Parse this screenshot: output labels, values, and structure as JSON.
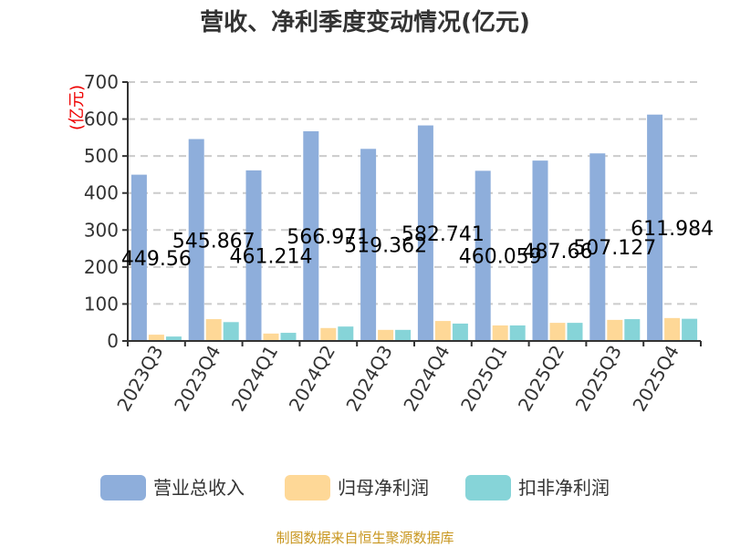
{
  "chart_data": {
    "type": "bar",
    "title": "营收、净利季度变动情况(亿元)",
    "ylabel": "(亿元)",
    "ylim": [
      0,
      700
    ],
    "yticks": [
      0,
      100,
      200,
      300,
      400,
      500,
      600,
      700
    ],
    "categories": [
      "2023Q3",
      "2023Q4",
      "2024Q1",
      "2024Q2",
      "2024Q3",
      "2024Q4",
      "2025Q1",
      "2025Q2",
      "2025Q3",
      "2025Q4"
    ],
    "series": [
      {
        "name": "营业总收入",
        "color": "#8eaedb",
        "values": [
          449.56,
          545.867,
          461.214,
          566.971,
          519.362,
          582.741,
          460.059,
          487.66,
          507.127,
          611.984
        ],
        "labels": [
          "449.56",
          "545.867",
          "461.214",
          "566.971",
          "519.362",
          "582.741",
          "460.059",
          "487.66",
          "507.127",
          "611.984"
        ]
      },
      {
        "name": "归母净利润",
        "color": "#fed897",
        "values": [
          17,
          59,
          20,
          35,
          30,
          54,
          42,
          49,
          57,
          62
        ]
      },
      {
        "name": "扣非净利润",
        "color": "#86d4d8",
        "values": [
          12,
          51,
          22,
          39,
          30,
          47,
          42,
          49,
          59,
          60
        ]
      }
    ],
    "grid": true,
    "legend": "bottom"
  },
  "source": "制图数据来自恒生聚源数据库"
}
